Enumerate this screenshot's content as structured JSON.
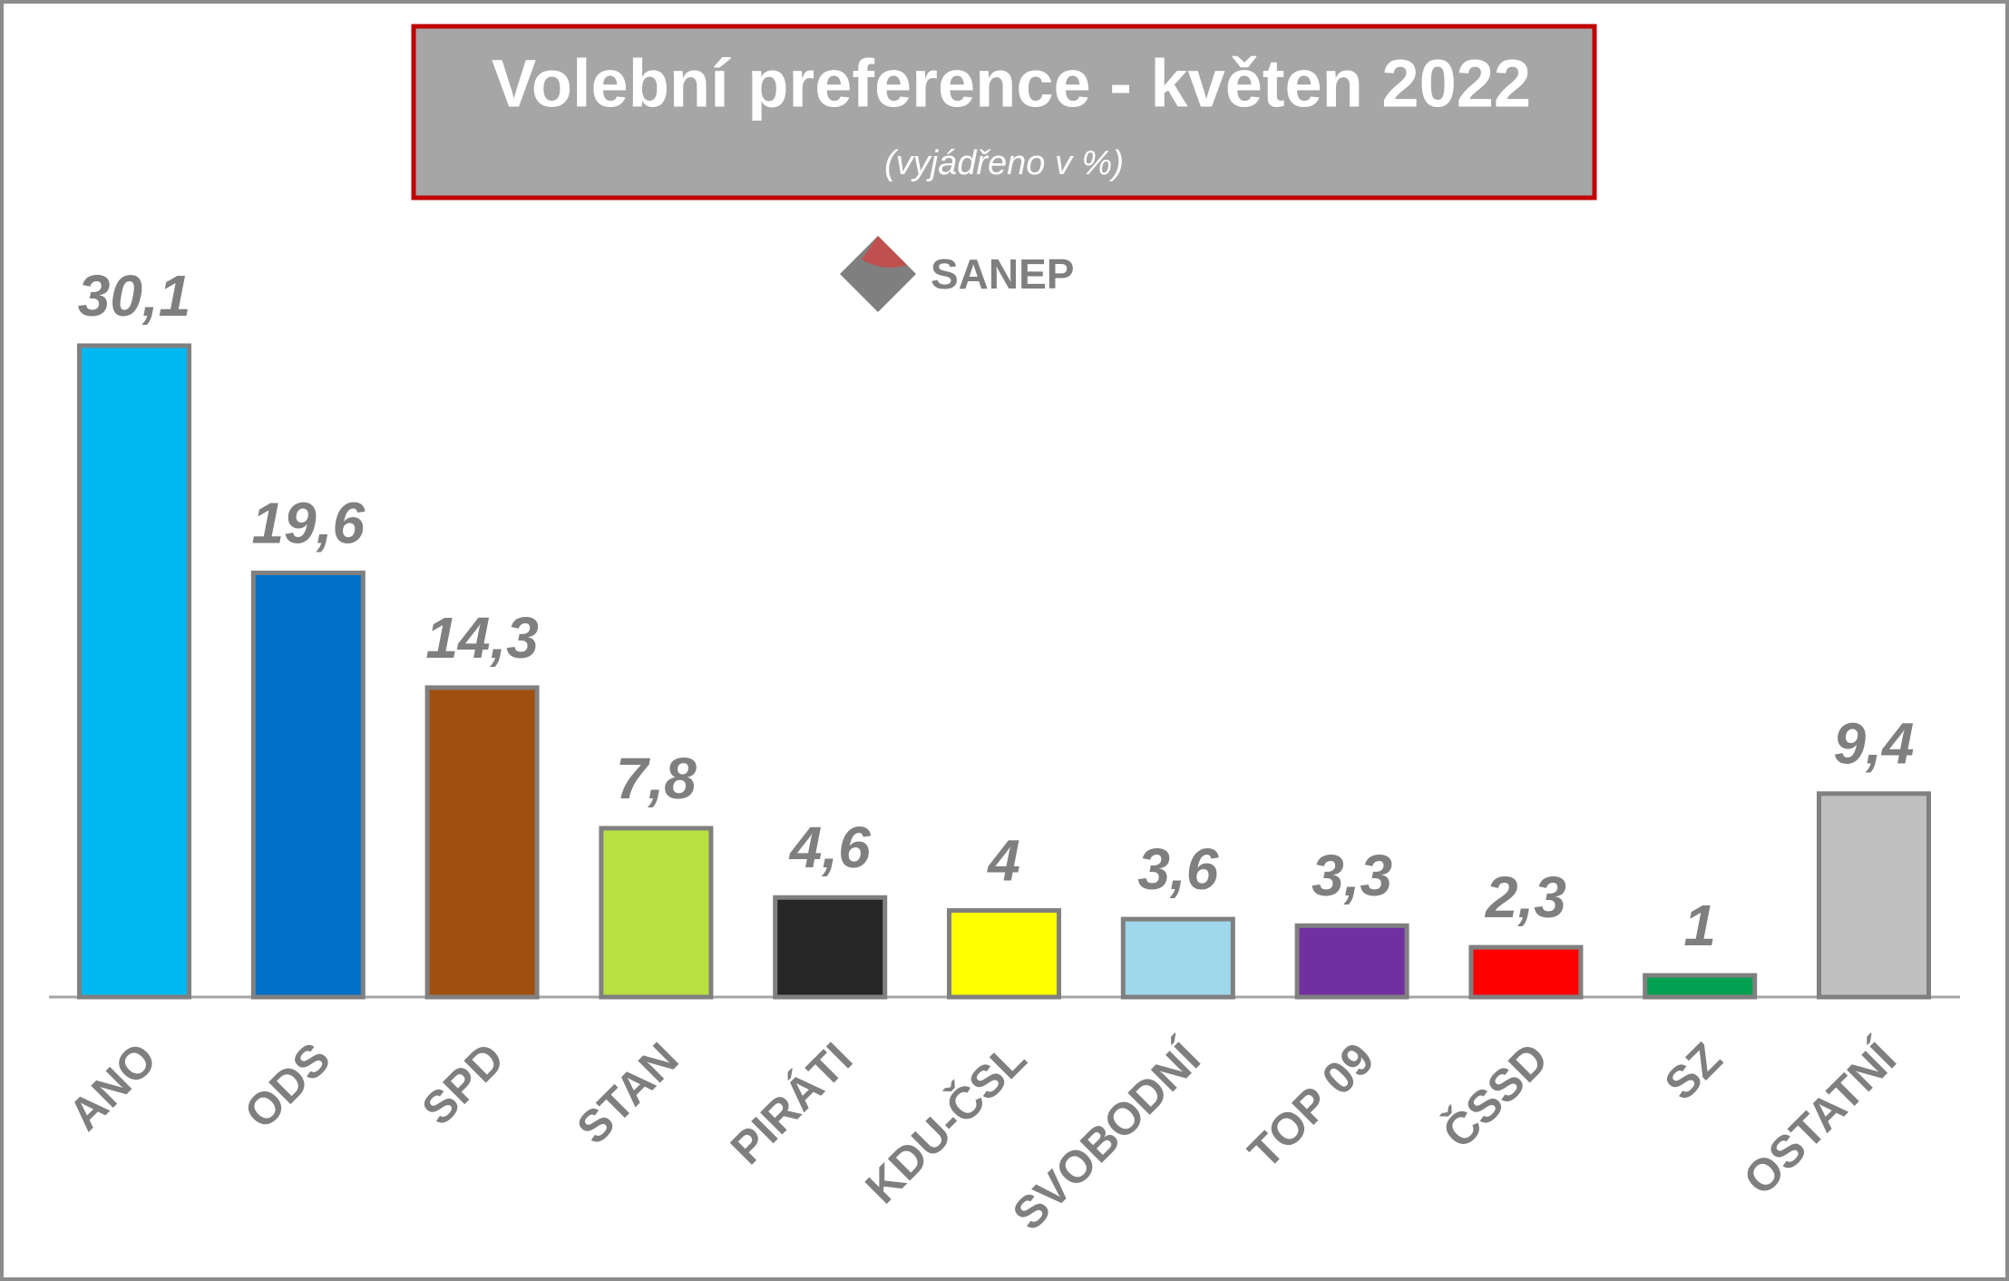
{
  "chart_data": {
    "type": "bar",
    "title": "Volební preference - květen 2022",
    "subtitle": "(vyjádřeno v %)",
    "logo": "SANEP",
    "categories": [
      "ANO",
      "ODS",
      "SPD",
      "STAN",
      "PIRÁTI",
      "KDU-ČSL",
      "SVOBODNÍ",
      "TOP 09",
      "ČSSD",
      "SZ",
      "OSTATNÍ"
    ],
    "values": [
      30.1,
      19.6,
      14.3,
      7.8,
      4.6,
      4,
      3.6,
      3.3,
      2.3,
      1,
      9.4
    ],
    "value_labels": [
      "30,1",
      "19,6",
      "14,3",
      "7,8",
      "4,6",
      "4",
      "3,6",
      "3,3",
      "2,3",
      "1",
      "9,4"
    ],
    "colors": [
      "#00b8f0",
      "#0070c8",
      "#a0500e",
      "#b8e040",
      "#262626",
      "#ffff00",
      "#9fd8ec",
      "#7030a0",
      "#ff0000",
      "#00a050",
      "#c0c0c0"
    ]
  }
}
